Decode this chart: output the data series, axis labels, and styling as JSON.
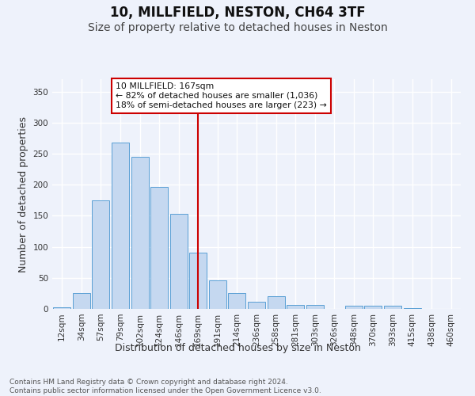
{
  "title": "10, MILLFIELD, NESTON, CH64 3TF",
  "subtitle": "Size of property relative to detached houses in Neston",
  "xlabel": "Distribution of detached houses by size in Neston",
  "ylabel": "Number of detached properties",
  "categories": [
    "12sqm",
    "34sqm",
    "57sqm",
    "79sqm",
    "102sqm",
    "124sqm",
    "146sqm",
    "169sqm",
    "191sqm",
    "214sqm",
    "236sqm",
    "258sqm",
    "281sqm",
    "303sqm",
    "326sqm",
    "348sqm",
    "370sqm",
    "393sqm",
    "415sqm",
    "438sqm",
    "460sqm"
  ],
  "values": [
    2,
    25,
    175,
    268,
    245,
    197,
    153,
    90,
    46,
    25,
    12,
    20,
    7,
    7,
    0,
    5,
    5,
    5,
    1,
    0,
    0
  ],
  "bar_color": "#c5d8f0",
  "bar_edge_color": "#5a9fd4",
  "vline_index": 7,
  "vline_color": "#cc0000",
  "annotation_text": "10 MILLFIELD: 167sqm\n← 82% of detached houses are smaller (1,036)\n18% of semi-detached houses are larger (223) →",
  "annotation_box_color": "#ffffff",
  "annotation_box_edge": "#cc0000",
  "footnote": "Contains HM Land Registry data © Crown copyright and database right 2024.\nContains public sector information licensed under the Open Government Licence v3.0.",
  "ylim": [
    0,
    370
  ],
  "background_color": "#eef2fb",
  "grid_color": "#ffffff",
  "title_fontsize": 12,
  "subtitle_fontsize": 10,
  "axis_label_fontsize": 9,
  "tick_fontsize": 7.5,
  "footnote_fontsize": 6.5
}
